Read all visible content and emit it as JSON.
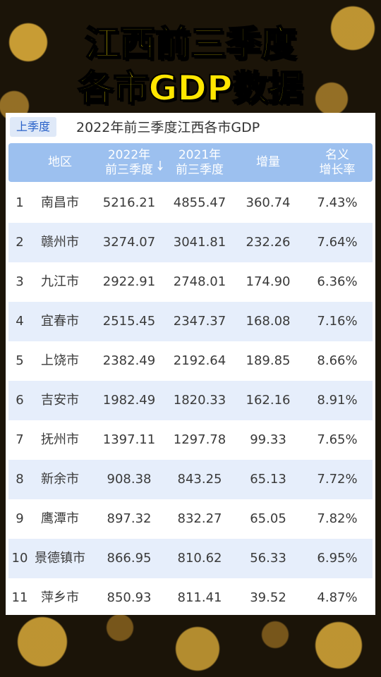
{
  "header": {
    "title_lines": [
      "江西前三季度",
      "各市GDP数据"
    ]
  },
  "table": {
    "tab": "上季度",
    "caption": "2022年前三季度江西各市GDP",
    "columns": [
      [
        "地区"
      ],
      [
        "2022年",
        "前三季度"
      ],
      [
        "2021年",
        "前三季度"
      ],
      [
        "增量"
      ],
      [
        "名义",
        "增长率"
      ]
    ],
    "rows": [
      [
        "1",
        "南昌市",
        "5216.21",
        "4855.47",
        "360.74",
        "7.43%"
      ],
      [
        "2",
        "赣州市",
        "3274.07",
        "3041.81",
        "232.26",
        "7.64%"
      ],
      [
        "3",
        "九江市",
        "2922.91",
        "2748.01",
        "174.90",
        "6.36%"
      ],
      [
        "4",
        "宜春市",
        "2515.45",
        "2347.37",
        "168.08",
        "7.16%"
      ],
      [
        "5",
        "上饶市",
        "2382.49",
        "2192.64",
        "189.85",
        "8.66%"
      ],
      [
        "6",
        "吉安市",
        "1982.49",
        "1820.33",
        "162.16",
        "8.91%"
      ],
      [
        "7",
        "抚州市",
        "1397.11",
        "1297.78",
        "99.33",
        "7.65%"
      ],
      [
        "8",
        "新余市",
        "908.38",
        "843.25",
        "65.13",
        "7.72%"
      ],
      [
        "9",
        "鹰潭市",
        "897.32",
        "832.27",
        "65.05",
        "7.82%"
      ],
      [
        "10",
        "景德镇市",
        "866.95",
        "810.62",
        "56.33",
        "6.95%"
      ],
      [
        "11",
        "萍乡市",
        "850.93",
        "811.41",
        "39.52",
        "4.87%"
      ]
    ]
  }
}
